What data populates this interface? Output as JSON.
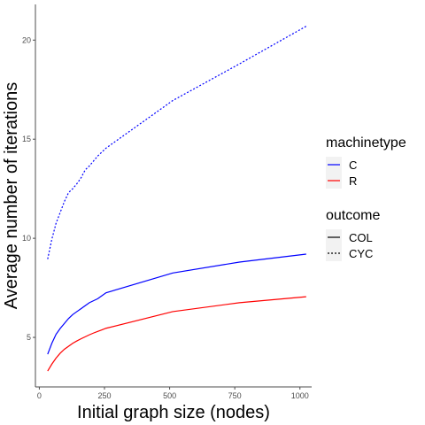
{
  "colors": {
    "C": "#0000ff",
    "R": "#ff0000",
    "axis": "#4d4d4d",
    "legend_key_bg": "#f2f2f2"
  },
  "chart_data": {
    "type": "line",
    "xlabel": "Initial graph size (nodes)",
    "ylabel": "Average number of iterations",
    "xlim": [
      -15,
      1045
    ],
    "ylim": [
      2.5,
      21.8
    ],
    "x_ticks": [
      0,
      250,
      500,
      750,
      1000
    ],
    "y_ticks": [
      5,
      10,
      15,
      20
    ],
    "grid": false,
    "legend_position": "right",
    "legends": [
      {
        "title": "machinetype",
        "entries": [
          {
            "label": "C",
            "color": "#0000ff",
            "linetype": "solid"
          },
          {
            "label": "R",
            "color": "#ff0000",
            "linetype": "solid"
          }
        ]
      },
      {
        "title": "outcome",
        "entries": [
          {
            "label": "COL",
            "color": "#000000",
            "linetype": "solid"
          },
          {
            "label": "CYC",
            "color": "#000000",
            "linetype": "dotted"
          }
        ]
      }
    ],
    "series": [
      {
        "machinetype": "C",
        "outcome": "CYC",
        "color": "#0000ff",
        "linetype": "dotted",
        "x": [
          32,
          48,
          64,
          80,
          96,
          112,
          128,
          144,
          160,
          176,
          192,
          208,
          224,
          240,
          256,
          512,
          768,
          1024
        ],
        "y": [
          8.95,
          9.95,
          10.75,
          11.3,
          11.85,
          12.3,
          12.5,
          12.75,
          13.05,
          13.45,
          13.65,
          13.9,
          14.15,
          14.35,
          14.55,
          16.95,
          18.8,
          20.7
        ]
      },
      {
        "machinetype": "C",
        "outcome": "COL",
        "color": "#0000ff",
        "linetype": "solid",
        "x": [
          32,
          48,
          64,
          80,
          96,
          112,
          128,
          144,
          160,
          176,
          192,
          208,
          224,
          240,
          256,
          512,
          768,
          1024
        ],
        "y": [
          4.15,
          4.7,
          5.15,
          5.45,
          5.7,
          5.95,
          6.15,
          6.3,
          6.45,
          6.6,
          6.75,
          6.85,
          6.95,
          7.1,
          7.25,
          8.25,
          8.8,
          9.2
        ]
      },
      {
        "machinetype": "R",
        "outcome": "COL",
        "color": "#ff0000",
        "linetype": "solid",
        "x": [
          32,
          48,
          64,
          80,
          96,
          112,
          128,
          144,
          160,
          176,
          192,
          208,
          224,
          240,
          256,
          512,
          768,
          1024
        ],
        "y": [
          3.3,
          3.65,
          3.95,
          4.2,
          4.4,
          4.55,
          4.7,
          4.82,
          4.93,
          5.03,
          5.13,
          5.22,
          5.3,
          5.38,
          5.46,
          6.3,
          6.75,
          7.05
        ]
      }
    ]
  }
}
